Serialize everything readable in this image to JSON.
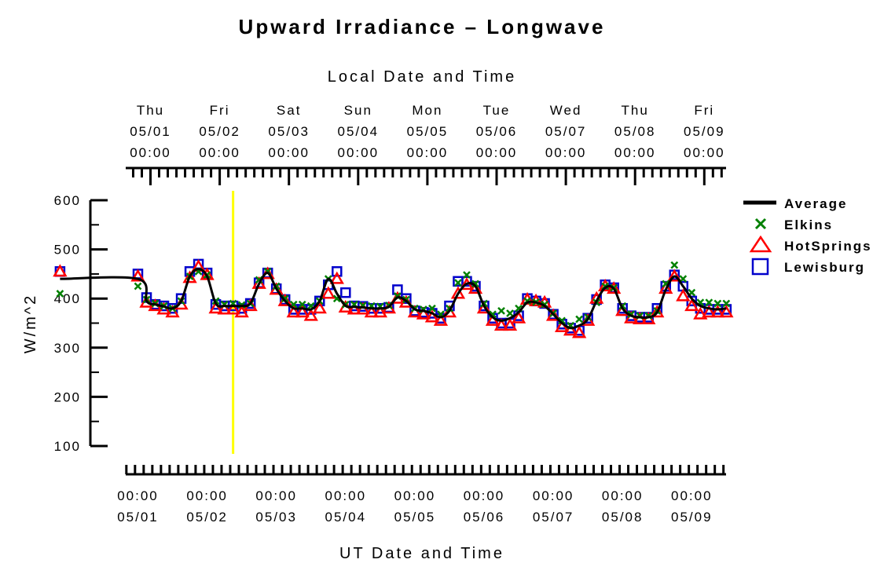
{
  "chart_data": {
    "type": "line",
    "title": "Upward Irradiance – Longwave",
    "top_axis_label": "Local Date and Time",
    "xlabel": "UT Date and Time",
    "ylabel": "W/m^2",
    "ylim": [
      100,
      600
    ],
    "y_ticks": [
      "600",
      "500",
      "400",
      "300",
      "200",
      "100"
    ],
    "x_ticks_bottom": [
      {
        "time": "00:00",
        "date": "05/01"
      },
      {
        "time": "00:00",
        "date": "05/02"
      },
      {
        "time": "00:00",
        "date": "05/03"
      },
      {
        "time": "00:00",
        "date": "05/04"
      },
      {
        "time": "00:00",
        "date": "05/05"
      },
      {
        "time": "00:00",
        "date": "05/06"
      },
      {
        "time": "00:00",
        "date": "05/07"
      },
      {
        "time": "00:00",
        "date": "05/08"
      },
      {
        "time": "00:00",
        "date": "05/09"
      }
    ],
    "x_ticks_top": [
      {
        "day": "Thu",
        "date": "05/01",
        "time": "00:00"
      },
      {
        "day": "Fri",
        "date": "05/02",
        "time": "00:00"
      },
      {
        "day": "Sat",
        "date": "05/03",
        "time": "00:00"
      },
      {
        "day": "Sun",
        "date": "05/04",
        "time": "00:00"
      },
      {
        "day": "Mon",
        "date": "05/05",
        "time": "00:00"
      },
      {
        "day": "Tue",
        "date": "05/06",
        "time": "00:00"
      },
      {
        "day": "Wed",
        "date": "05/07",
        "time": "00:00"
      },
      {
        "day": "Thu",
        "date": "05/08",
        "time": "00:00"
      },
      {
        "day": "Fri",
        "date": "05/09",
        "time": "00:00"
      }
    ],
    "marker_line_x": "05/02 09:00",
    "legend_position": "right",
    "series": [
      {
        "name": "Average",
        "color": "#000000",
        "marker": "line",
        "x": [
          "04/30 21:00",
          "05/01 00:00",
          "05/01 03:00",
          "05/01 06:00",
          "05/01 09:00",
          "05/01 12:00",
          "05/01 15:00",
          "05/01 18:00",
          "05/01 21:00",
          "05/02 00:00",
          "05/02 03:00",
          "05/02 06:00",
          "05/02 09:00",
          "05/02 12:00",
          "05/02 15:00",
          "05/02 18:00",
          "05/02 21:00",
          "05/03 00:00",
          "05/03 03:00",
          "05/03 06:00",
          "05/03 09:00",
          "05/03 12:00",
          "05/03 15:00",
          "05/03 18:00",
          "05/03 21:00",
          "05/04 00:00",
          "05/04 03:00",
          "05/04 06:00",
          "05/04 09:00",
          "05/04 12:00",
          "05/04 15:00",
          "05/04 18:00",
          "05/04 21:00",
          "05/05 00:00",
          "05/05 03:00",
          "05/05 06:00",
          "05/05 09:00",
          "05/05 12:00",
          "05/05 15:00",
          "05/05 18:00",
          "05/05 21:00",
          "05/06 00:00",
          "05/06 03:00",
          "05/06 06:00",
          "05/06 09:00",
          "05/06 12:00",
          "05/06 15:00",
          "05/06 18:00",
          "05/06 21:00",
          "05/07 00:00",
          "05/07 03:00",
          "05/07 06:00",
          "05/07 09:00",
          "05/07 12:00",
          "05/07 15:00",
          "05/07 18:00",
          "05/07 21:00",
          "05/08 00:00",
          "05/08 03:00",
          "05/08 06:00",
          "05/08 09:00",
          "05/08 12:00",
          "05/08 15:00",
          "05/08 18:00",
          "05/08 21:00",
          "05/09 00:00",
          "05/09 03:00",
          "05/09 06:00",
          "05/09 09:00",
          "05/09 12:00"
        ],
        "values": [
          440,
          440,
          395,
          388,
          384,
          380,
          395,
          445,
          460,
          445,
          390,
          385,
          385,
          385,
          390,
          430,
          452,
          420,
          395,
          380,
          380,
          378,
          395,
          440,
          410,
          385,
          383,
          382,
          380,
          380,
          383,
          402,
          395,
          378,
          375,
          370,
          362,
          375,
          410,
          430,
          425,
          385,
          362,
          355,
          360,
          372,
          392,
          392,
          385,
          368,
          350,
          340,
          345,
          358,
          395,
          422,
          420,
          380,
          365,
          362,
          362,
          372,
          418,
          445,
          425,
          400,
          385,
          380,
          378,
          380
        ]
      },
      {
        "name": "Elkins",
        "color": "#008000",
        "marker": "x",
        "x": [
          "04/30 21:00",
          "05/01 00:00",
          "05/01 03:00",
          "05/01 06:00",
          "05/01 09:00",
          "05/01 12:00",
          "05/01 15:00",
          "05/01 18:00",
          "05/01 21:00",
          "05/02 00:00",
          "05/02 03:00",
          "05/02 06:00",
          "05/02 09:00",
          "05/02 12:00",
          "05/02 15:00",
          "05/02 18:00",
          "05/02 21:00",
          "05/03 00:00",
          "05/03 03:00",
          "05/03 06:00",
          "05/03 09:00",
          "05/03 12:00",
          "05/03 15:00",
          "05/03 18:00",
          "05/03 21:00",
          "05/04 00:00",
          "05/04 03:00",
          "05/04 06:00",
          "05/04 09:00",
          "05/04 12:00",
          "05/04 15:00",
          "05/04 18:00",
          "05/04 21:00",
          "05/05 00:00",
          "05/05 03:00",
          "05/05 06:00",
          "05/05 09:00",
          "05/05 12:00",
          "05/05 15:00",
          "05/05 18:00",
          "05/05 21:00",
          "05/06 00:00",
          "05/06 03:00",
          "05/06 06:00",
          "05/06 09:00",
          "05/06 12:00",
          "05/06 15:00",
          "05/06 18:00",
          "05/06 21:00",
          "05/07 00:00",
          "05/07 03:00",
          "05/07 06:00",
          "05/07 09:00",
          "05/07 12:00",
          "05/07 15:00",
          "05/07 18:00",
          "05/07 21:00",
          "05/08 00:00",
          "05/08 03:00",
          "05/08 06:00",
          "05/08 09:00",
          "05/08 12:00",
          "05/08 15:00",
          "05/08 18:00",
          "05/08 21:00",
          "05/09 00:00",
          "05/09 03:00",
          "05/09 06:00",
          "05/09 09:00",
          "05/09 12:00"
        ],
        "values": [
          410,
          425,
          398,
          390,
          385,
          380,
          395,
          445,
          455,
          448,
          395,
          388,
          390,
          387,
          390,
          438,
          455,
          425,
          400,
          388,
          388,
          385,
          395,
          440,
          400,
          388,
          388,
          386,
          385,
          384,
          386,
          405,
          398,
          380,
          378,
          380,
          368,
          380,
          432,
          448,
          430,
          390,
          368,
          375,
          370,
          380,
          395,
          393,
          388,
          370,
          355,
          345,
          358,
          362,
          392,
          425,
          422,
          385,
          368,
          365,
          365,
          375,
          430,
          468,
          440,
          412,
          392,
          392,
          390,
          390
        ]
      },
      {
        "name": "HotSprings",
        "color": "#ff0000",
        "marker": "triangle",
        "x": [
          "04/30 21:00",
          "05/01 00:00",
          "05/01 03:00",
          "05/01 06:00",
          "05/01 09:00",
          "05/01 12:00",
          "05/01 15:00",
          "05/01 18:00",
          "05/01 21:00",
          "05/02 00:00",
          "05/02 03:00",
          "05/02 06:00",
          "05/02 09:00",
          "05/02 12:00",
          "05/02 15:00",
          "05/02 18:00",
          "05/02 21:00",
          "05/03 00:00",
          "05/03 03:00",
          "05/03 06:00",
          "05/03 09:00",
          "05/03 12:00",
          "05/03 15:00",
          "05/03 18:00",
          "05/03 21:00",
          "05/04 00:00",
          "05/04 03:00",
          "05/04 06:00",
          "05/04 09:00",
          "05/04 12:00",
          "05/04 15:00",
          "05/04 18:00",
          "05/04 21:00",
          "05/05 00:00",
          "05/05 03:00",
          "05/05 06:00",
          "05/05 09:00",
          "05/05 12:00",
          "05/05 15:00",
          "05/05 18:00",
          "05/05 21:00",
          "05/06 00:00",
          "05/06 03:00",
          "05/06 06:00",
          "05/06 09:00",
          "05/06 12:00",
          "05/06 15:00",
          "05/06 18:00",
          "05/06 21:00",
          "05/07 00:00",
          "05/07 03:00",
          "05/07 06:00",
          "05/07 09:00",
          "05/07 12:00",
          "05/07 15:00",
          "05/07 18:00",
          "05/07 21:00",
          "05/08 00:00",
          "05/08 03:00",
          "05/08 06:00",
          "05/08 09:00",
          "05/08 12:00",
          "05/08 15:00",
          "05/08 18:00",
          "05/08 21:00",
          "05/09 00:00",
          "05/09 03:00",
          "05/09 06:00",
          "05/09 09:00",
          "05/09 12:00"
        ],
        "values": [
          455,
          445,
          392,
          385,
          378,
          372,
          388,
          442,
          465,
          448,
          380,
          378,
          378,
          372,
          385,
          430,
          450,
          418,
          395,
          372,
          372,
          365,
          380,
          410,
          440,
          382,
          378,
          378,
          372,
          372,
          380,
          400,
          392,
          372,
          368,
          362,
          355,
          372,
          410,
          428,
          420,
          380,
          355,
          345,
          345,
          360,
          398,
          395,
          392,
          365,
          342,
          335,
          330,
          355,
          400,
          425,
          420,
          375,
          360,
          358,
          358,
          372,
          420,
          445,
          405,
          385,
          368,
          372,
          372,
          372
        ]
      },
      {
        "name": "Lewisburg",
        "color": "#0000cc",
        "marker": "square",
        "x": [
          "04/30 21:00",
          "05/01 00:00",
          "05/01 03:00",
          "05/01 06:00",
          "05/01 09:00",
          "05/01 12:00",
          "05/01 15:00",
          "05/01 18:00",
          "05/01 21:00",
          "05/02 00:00",
          "05/02 03:00",
          "05/02 06:00",
          "05/02 09:00",
          "05/02 12:00",
          "05/02 15:00",
          "05/02 18:00",
          "05/02 21:00",
          "05/03 00:00",
          "05/03 03:00",
          "05/03 06:00",
          "05/03 09:00",
          "05/03 12:00",
          "05/03 15:00",
          "05/03 18:00",
          "05/03 21:00",
          "05/04 00:00",
          "05/04 03:00",
          "05/04 06:00",
          "05/04 09:00",
          "05/04 12:00",
          "05/04 15:00",
          "05/04 18:00",
          "05/04 21:00",
          "05/05 00:00",
          "05/05 03:00",
          "05/05 06:00",
          "05/05 09:00",
          "05/05 12:00",
          "05/05 15:00",
          "05/05 18:00",
          "05/05 21:00",
          "05/06 00:00",
          "05/06 03:00",
          "05/06 06:00",
          "05/06 09:00",
          "05/06 12:00",
          "05/06 15:00",
          "05/06 18:00",
          "05/06 21:00",
          "05/07 00:00",
          "05/07 03:00",
          "05/07 06:00",
          "05/07 09:00",
          "05/07 12:00",
          "05/07 15:00",
          "05/07 18:00",
          "05/07 21:00",
          "05/08 00:00",
          "05/08 03:00",
          "05/08 06:00",
          "05/08 09:00",
          "05/08 12:00",
          "05/08 15:00",
          "05/08 18:00",
          "05/08 21:00",
          "05/09 00:00",
          "05/09 03:00",
          "05/09 06:00",
          "05/09 09:00",
          "05/09 12:00"
        ],
        "values": [
          455,
          450,
          402,
          388,
          385,
          380,
          400,
          455,
          470,
          452,
          388,
          385,
          385,
          380,
          390,
          432,
          452,
          420,
          398,
          378,
          378,
          378,
          395,
          428,
          455,
          412,
          385,
          384,
          380,
          380,
          382,
          418,
          400,
          375,
          372,
          370,
          360,
          385,
          435,
          435,
          425,
          385,
          360,
          350,
          350,
          365,
          400,
          395,
          390,
          368,
          348,
          340,
          335,
          360,
          398,
          428,
          422,
          380,
          365,
          362,
          362,
          380,
          425,
          448,
          425,
          395,
          380,
          378,
          378,
          378
        ]
      }
    ]
  }
}
